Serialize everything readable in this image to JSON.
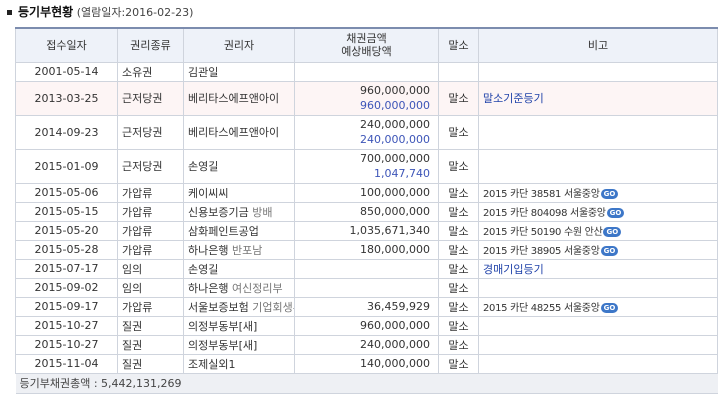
{
  "section": {
    "title": "등기부현황",
    "subtitle": "(열람일자:2016-02-23)"
  },
  "table": {
    "headers": {
      "date": "접수일자",
      "type": "권리종류",
      "holder": "권리자",
      "amount_line1": "채권금액",
      "amount_line2": "예상배당액",
      "cancel": "말소",
      "memo": "비고"
    },
    "rows": [
      {
        "date": "2001-05-14",
        "type": "소유권",
        "holder": "김관일",
        "holder_extra": "",
        "amount": "",
        "dividend": "",
        "cancel": "",
        "memo": "",
        "memo_kind": "none"
      },
      {
        "date": "2013-03-25",
        "type": "근저당권",
        "holder": "베리타스에프앤아이",
        "holder_extra": "",
        "amount": "960,000,000",
        "dividend": "960,000,000",
        "cancel": "말소",
        "memo": "말소기준등기",
        "memo_kind": "link"
      },
      {
        "date": "2014-09-23",
        "type": "근저당권",
        "holder": "베리타스에프앤아이",
        "holder_extra": "",
        "amount": "240,000,000",
        "dividend": "240,000,000",
        "cancel": "말소",
        "memo": "",
        "memo_kind": "none"
      },
      {
        "date": "2015-01-09",
        "type": "근저당권",
        "holder": "손영길",
        "holder_extra": "",
        "amount": "700,000,000",
        "dividend": "1,047,740",
        "cancel": "말소",
        "memo": "",
        "memo_kind": "none"
      },
      {
        "date": "2015-05-06",
        "type": "가압류",
        "holder": "케이씨씨",
        "holder_extra": "",
        "amount": "100,000,000",
        "dividend": "",
        "cancel": "말소",
        "memo": "2015 카단 38581 서울중앙",
        "memo_kind": "case"
      },
      {
        "date": "2015-05-15",
        "type": "가압류",
        "holder": "신용보증기금",
        "holder_extra": "방배",
        "amount": "850,000,000",
        "dividend": "",
        "cancel": "말소",
        "memo": "2015 카단 804098 서울중앙",
        "memo_kind": "case"
      },
      {
        "date": "2015-05-20",
        "type": "가압류",
        "holder": "삼화페인트공업",
        "holder_extra": "",
        "amount": "1,035,671,340",
        "dividend": "",
        "cancel": "말소",
        "memo": "2015 카단 50190 수원 안산",
        "memo_kind": "case"
      },
      {
        "date": "2015-05-28",
        "type": "가압류",
        "holder": "하나은행",
        "holder_extra": "반포남",
        "amount": "180,000,000",
        "dividend": "",
        "cancel": "말소",
        "memo": "2015 카단 38905 서울중앙",
        "memo_kind": "case"
      },
      {
        "date": "2015-07-17",
        "type": "임의",
        "holder": "손영길",
        "holder_extra": "",
        "amount": "",
        "dividend": "",
        "cancel": "말소",
        "memo": "경매기입등기",
        "memo_kind": "link"
      },
      {
        "date": "2015-09-02",
        "type": "임의",
        "holder": "하나은행",
        "holder_extra": "여신정리부",
        "amount": "",
        "dividend": "",
        "cancel": "말소",
        "memo": "",
        "memo_kind": "none"
      },
      {
        "date": "2015-09-17",
        "type": "가압류",
        "holder": "서울보증보험",
        "holder_extra": "기업회생부",
        "amount": "36,459,929",
        "dividend": "",
        "cancel": "말소",
        "memo": "2015 카단 48255 서울중앙",
        "memo_kind": "case"
      },
      {
        "date": "2015-10-27",
        "type": "질권",
        "holder": "의정부동부[새]",
        "holder_extra": "",
        "amount": "960,000,000",
        "dividend": "",
        "cancel": "말소",
        "memo": "",
        "memo_kind": "none"
      },
      {
        "date": "2015-10-27",
        "type": "질권",
        "holder": "의정부동부[새]",
        "holder_extra": "",
        "amount": "240,000,000",
        "dividend": "",
        "cancel": "말소",
        "memo": "",
        "memo_kind": "none"
      },
      {
        "date": "2015-11-04",
        "type": "질권",
        "holder": "조제실외1",
        "holder_extra": "",
        "amount": "140,000,000",
        "dividend": "",
        "cancel": "말소",
        "memo": "",
        "memo_kind": "none"
      }
    ],
    "go_label": "GO",
    "total": "등기부채권총액 : 5,442,131,269"
  },
  "colors": {
    "header_bg": "#eef2f9",
    "border": "#cfd4dd",
    "link": "#2244aa",
    "dividend": "#3d55b8",
    "highlight_row": "#fdf5f5",
    "go_badge": "#3d77c8"
  }
}
